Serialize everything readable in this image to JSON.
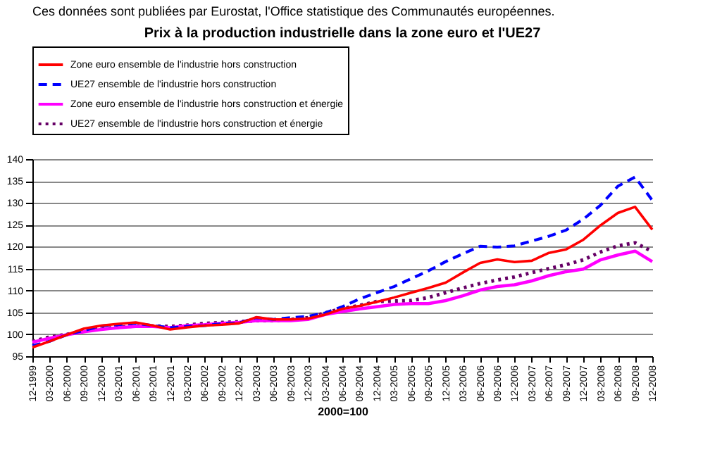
{
  "chart_data": {
    "type": "line",
    "title": "Prix à la production industrielle dans la zone euro et l'UE27",
    "xlabel": "2000=100",
    "annotations": [
      "Ces données sont publiées par Eurostat, l'Office statistique des Communautés européennes."
    ],
    "categories": [
      "12-1999",
      "03-2000",
      "06-2000",
      "09-2000",
      "12-2000",
      "03-2001",
      "06-2001",
      "09-2001",
      "12-2001",
      "03-2002",
      "06-2002",
      "09-2002",
      "12-2002",
      "03-2003",
      "06-2003",
      "09-2003",
      "12-2003",
      "03-2004",
      "06-2004",
      "09-2004",
      "12-2004",
      "03-2005",
      "06-2005",
      "09-2005",
      "12-2005",
      "03-2006",
      "06-2006",
      "09-2006",
      "12-2006",
      "03-2007",
      "06-2007",
      "09-2007",
      "12-2007",
      "03-2008",
      "06-2008",
      "09-2008",
      "12-2008"
    ],
    "series": [
      {
        "name": "Zone euro ensemble de l'industrie hors construction",
        "color": "#ff0000",
        "line_style": "solid",
        "values": [
          97.0,
          98.4,
          99.9,
          101.3,
          102.0,
          102.4,
          102.7,
          102.0,
          101.1,
          101.6,
          102.0,
          102.2,
          102.5,
          103.9,
          103.4,
          103.4,
          103.6,
          104.5,
          105.8,
          106.5,
          107.4,
          108.4,
          109.5,
          110.6,
          111.8,
          114.1,
          116.3,
          117.1,
          116.5,
          116.8,
          118.6,
          119.4,
          121.6,
          124.9,
          127.7,
          129.1,
          123.9
        ]
      },
      {
        "name": "UE27 ensemble de l'industrie hors construction",
        "color": "#0000ff",
        "line_style": "dashed",
        "values": [
          97.4,
          98.4,
          99.9,
          100.9,
          101.9,
          102.2,
          102.5,
          102.0,
          101.5,
          101.8,
          102.0,
          102.4,
          102.6,
          103.8,
          103.4,
          103.8,
          104.1,
          104.9,
          106.3,
          108.1,
          109.5,
          110.9,
          112.7,
          114.5,
          116.6,
          118.4,
          120.1,
          119.9,
          120.2,
          121.3,
          122.4,
          123.8,
          126.3,
          129.5,
          133.8,
          135.9,
          130.6
        ]
      },
      {
        "name": "Zone euro ensemble de l'industrie hors construction et énergie",
        "color": "#ff00ff",
        "line_style": "solid",
        "values": [
          98.2,
          99.1,
          99.9,
          100.6,
          101.1,
          101.5,
          101.8,
          101.8,
          101.5,
          102.0,
          102.2,
          102.5,
          102.7,
          103.1,
          103.1,
          103.1,
          103.4,
          104.5,
          105.2,
          105.8,
          106.3,
          106.8,
          107.0,
          107.0,
          107.7,
          108.8,
          110.1,
          110.9,
          111.3,
          112.2,
          113.4,
          114.3,
          114.9,
          117.0,
          118.1,
          119.0,
          116.6
        ]
      },
      {
        "name": "UE27 ensemble de l'industrie hors construction et énergie",
        "color": "#660066",
        "line_style": "dotted",
        "values": [
          98.4,
          99.4,
          100.0,
          100.8,
          101.3,
          101.6,
          101.9,
          101.9,
          101.8,
          102.1,
          102.5,
          102.7,
          102.9,
          103.1,
          103.1,
          103.4,
          103.8,
          104.9,
          105.9,
          106.6,
          107.5,
          107.6,
          107.7,
          108.4,
          109.5,
          110.6,
          111.6,
          112.4,
          113.1,
          114.1,
          115.0,
          115.9,
          117.0,
          118.8,
          120.2,
          120.9,
          118.9
        ]
      }
    ],
    "ylim": [
      95,
      140
    ],
    "yticks": [
      95,
      100,
      105,
      110,
      115,
      120,
      125,
      130,
      135,
      140
    ],
    "grid": "y",
    "legend": "top",
    "marker": "none"
  }
}
